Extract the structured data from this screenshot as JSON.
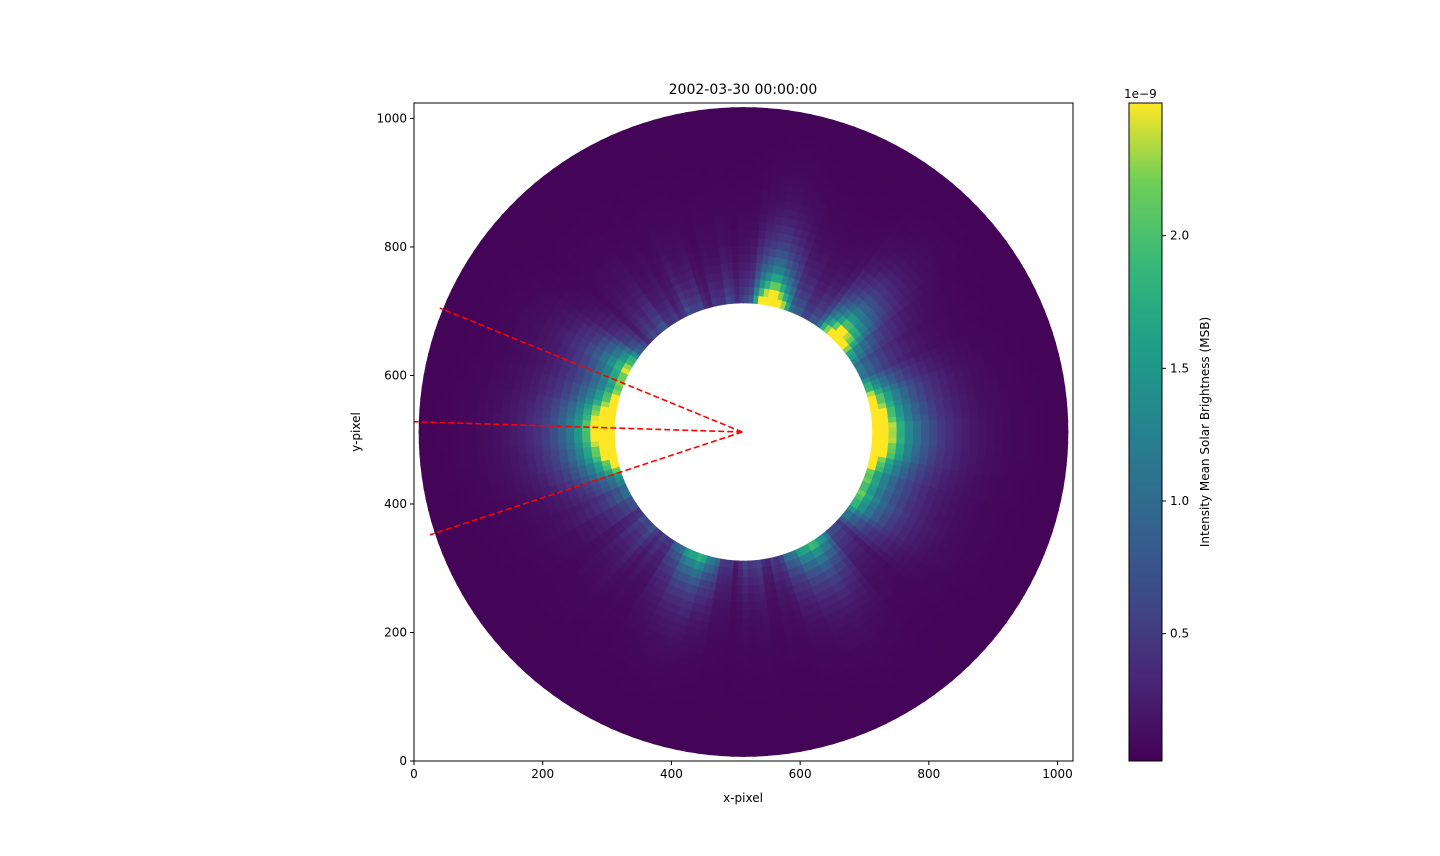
{
  "chart_data": {
    "type": "heatmap",
    "title": "2002-03-30 00:00:00",
    "xlabel": "x-pixel",
    "ylabel": "y-pixel",
    "xlim": [
      0,
      1024
    ],
    "ylim": [
      0,
      1024
    ],
    "xticks": [
      0,
      200,
      400,
      600,
      800,
      1000
    ],
    "yticks": [
      0,
      200,
      400,
      600,
      800,
      1000
    ],
    "grid": false,
    "image": {
      "center": [
        512,
        512
      ],
      "inner_radius": 200,
      "outer_radius": 504,
      "bright_streamers": [
        {
          "angle_deg": 180,
          "width_deg": 24,
          "strength": 1.0
        },
        {
          "angle_deg": 0,
          "width_deg": 28,
          "strength": 0.85
        },
        {
          "angle_deg": 78,
          "width_deg": 10,
          "strength": 0.8
        },
        {
          "angle_deg": 45,
          "width_deg": 12,
          "strength": 0.7
        },
        {
          "angle_deg": 152,
          "width_deg": 10,
          "strength": 0.4
        },
        {
          "angle_deg": 250,
          "width_deg": 10,
          "strength": 0.35
        },
        {
          "angle_deg": 300,
          "width_deg": 12,
          "strength": 0.35
        },
        {
          "angle_deg": 330,
          "width_deg": 10,
          "strength": 0.3
        }
      ]
    },
    "overlay_lines": [
      {
        "from": [
          510,
          512
        ],
        "to": [
          40,
          705
        ],
        "color": "#ff0000",
        "style": "dashed"
      },
      {
        "from": [
          510,
          512
        ],
        "to": [
          0,
          528
        ],
        "color": "#ff0000",
        "style": "dashed"
      },
      {
        "from": [
          510,
          512
        ],
        "to": [
          25,
          352
        ],
        "color": "#ff0000",
        "style": "dashed"
      }
    ],
    "colorbar": {
      "label": "Intensity Mean Solar Brightness (MSB)",
      "scale_label": "1e−9",
      "colormap": "viridis",
      "range": [
        0.02,
        2.5
      ],
      "ticks": [
        0.5,
        1.0,
        1.5,
        2.0
      ],
      "tick_labels": [
        "0.5",
        "1.0",
        "1.5",
        "2.0"
      ]
    }
  }
}
